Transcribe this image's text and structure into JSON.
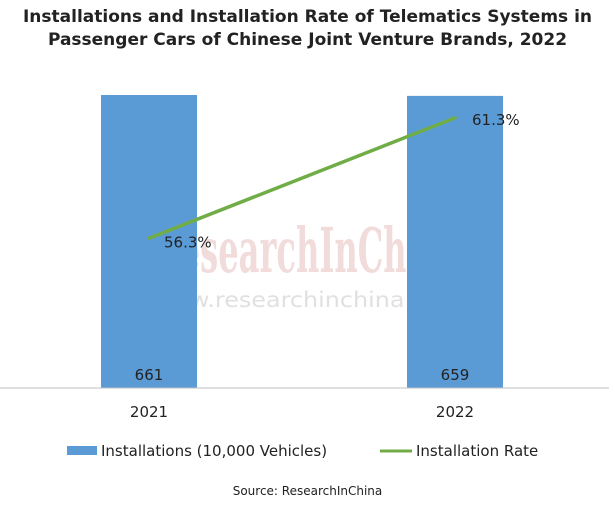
{
  "title_line1": "Installations and Installation Rate of Telematics Systems in",
  "title_line2": "Passenger Cars of Chinese Joint Venture Brands, 2022",
  "watermark": {
    "brand": "ResearchInChina",
    "url": "www.researchinchina.com"
  },
  "source": "Source: ResearchInChina",
  "colors": {
    "bar": "#5b9bd5",
    "line": "#70ad47",
    "text": "#222222",
    "axis": "#bfbfbf"
  },
  "chart_data": {
    "type": "bar",
    "categories": [
      "2021",
      "2022"
    ],
    "series": [
      {
        "name": "Installations (10,000 Vehicles)",
        "type": "bar",
        "values": [
          661,
          659
        ],
        "labels": [
          "661",
          "659"
        ]
      },
      {
        "name": "Installation Rate",
        "type": "line",
        "values": [
          56.3,
          61.3
        ],
        "labels": [
          "56.3%",
          "61.3%"
        ]
      }
    ],
    "y_left_range": [
      0,
      661
    ],
    "y_right_range": [
      50,
      62
    ],
    "grid": false,
    "legend_position": "bottom"
  }
}
